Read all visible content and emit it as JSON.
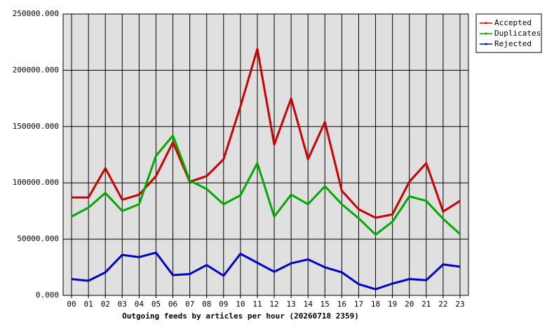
{
  "chart_data": {
    "type": "line",
    "title": "Outgoing feeds by articles per hour (20260718 2359)",
    "categories": [
      "00",
      "01",
      "02",
      "03",
      "04",
      "05",
      "06",
      "07",
      "08",
      "09",
      "10",
      "11",
      "12",
      "13",
      "14",
      "15",
      "16",
      "17",
      "18",
      "19",
      "20",
      "21",
      "22",
      "23"
    ],
    "series": [
      {
        "name": "Accepted",
        "color": "#cc0000",
        "values": [
          87000,
          87000,
          113000,
          85000,
          89500,
          106000,
          136000,
          101000,
          106000,
          121000,
          168000,
          219000,
          134000,
          175000,
          121000,
          154000,
          93000,
          76500,
          69000,
          72000,
          101000,
          117500,
          74500,
          84000
        ]
      },
      {
        "name": "Duplicates",
        "color": "#00aa00",
        "values": [
          70000,
          78000,
          91000,
          75000,
          81000,
          124000,
          142000,
          102000,
          94500,
          81000,
          89000,
          117500,
          70000,
          89500,
          81000,
          97000,
          81000,
          68500,
          54000,
          65500,
          88000,
          84000,
          68000,
          54500
        ]
      },
      {
        "name": "Rejected",
        "color": "#0000cc",
        "values": [
          14500,
          13000,
          20500,
          36000,
          34000,
          38000,
          18000,
          19000,
          27000,
          17500,
          37000,
          29000,
          21000,
          28500,
          32000,
          25000,
          20500,
          10000,
          5500,
          10500,
          14500,
          13500,
          27500,
          25500
        ]
      }
    ],
    "ylim": [
      0,
      250000
    ],
    "yticks": [
      {
        "value": 0,
        "label": "0.000"
      },
      {
        "value": 50000,
        "label": "50000.000"
      },
      {
        "value": 100000,
        "label": "100000.000"
      },
      {
        "value": 150000,
        "label": "150000.000"
      },
      {
        "value": 200000,
        "label": "200000.000"
      },
      {
        "value": 250000,
        "label": "250000.000"
      }
    ],
    "grid": true,
    "legend": "top-right"
  }
}
